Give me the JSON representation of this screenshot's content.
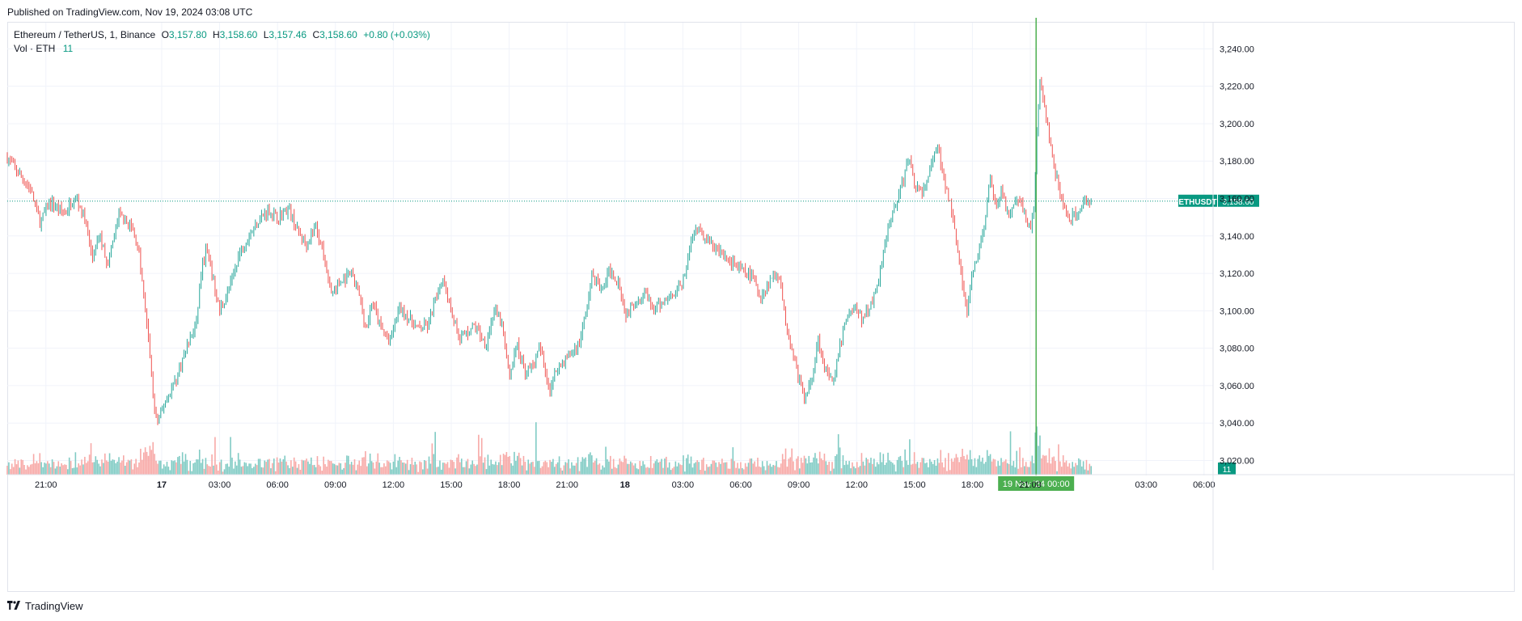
{
  "header": {
    "published": "Published on TradingView.com, Nov 19, 2024 03:08 UTC"
  },
  "legend": {
    "symbol": "Ethereum / TetherUS, 1, Binance",
    "o_label": "O",
    "o_value": "3,157.80",
    "h_label": "H",
    "h_value": "3,158.60",
    "l_label": "L",
    "l_value": "3,157.46",
    "c_label": "C",
    "c_value": "3,158.60",
    "change": "+0.80 (+0.03%)",
    "vol_label": "Vol · ETH",
    "vol_value": "11"
  },
  "footer": {
    "brand": "TradingView",
    "logo_icon": "tradingview-logo-icon"
  },
  "colors": {
    "up": "#26a69a",
    "down": "#ef5350",
    "vol_up": "#80cbc4",
    "vol_down": "#f7a9a7",
    "price_label": "#089981",
    "crosshair": "#4caf50",
    "grid": "#f0f3fa"
  },
  "chart_data": {
    "type": "candlestick",
    "interval": "1 minute",
    "symbol": "ETHUSDT",
    "exchange": "Binance",
    "y_axis_ticks": [
      "3,020.00",
      "3,040.00",
      "3,060.00",
      "3,080.00",
      "3,100.00",
      "3,120.00",
      "3,140.00",
      "3,160.00",
      "3,180.00",
      "3,200.00",
      "3,220.00",
      "3,240.00"
    ],
    "ylim": [
      3012,
      3254
    ],
    "x_axis_ticks": [
      "21:00",
      "17",
      "03:00",
      "06:00",
      "09:00",
      "12:00",
      "15:00",
      "18:00",
      "21:00",
      "18",
      "03:00",
      "06:00",
      "09:00",
      "12:00",
      "15:00",
      "18:00",
      "21:00",
      "03:00",
      "06:00"
    ],
    "bold_ticks": [
      "17",
      "18"
    ],
    "time_range_hours": [
      0,
      62.3
    ],
    "x_tick_hours": [
      2,
      8,
      11,
      14,
      17,
      20,
      23,
      26,
      29,
      32,
      35,
      38,
      41,
      44,
      47,
      50,
      53,
      59,
      62
    ],
    "last_hour": 56.15,
    "crosshair_hour": 53.3,
    "crosshair_label": "19 Nov '24   00:00",
    "last_price": 3158.6,
    "last_price_label": "ETHUSDT",
    "last_price_value": "3,158.60",
    "volume_label": "11",
    "price_path": [
      [
        0.0,
        3182
      ],
      [
        0.4,
        3176
      ],
      [
        1.2,
        3165
      ],
      [
        1.7,
        3147
      ],
      [
        2.2,
        3158
      ],
      [
        3.0,
        3152
      ],
      [
        3.5,
        3162
      ],
      [
        4.0,
        3150
      ],
      [
        4.4,
        3128
      ],
      [
        4.8,
        3140
      ],
      [
        5.2,
        3125
      ],
      [
        5.8,
        3152
      ],
      [
        6.5,
        3143
      ],
      [
        6.8,
        3132
      ],
      [
        7.1,
        3105
      ],
      [
        7.4,
        3075
      ],
      [
        7.6,
        3048
      ],
      [
        7.8,
        3040
      ],
      [
        8.2,
        3052
      ],
      [
        8.8,
        3065
      ],
      [
        9.2,
        3078
      ],
      [
        9.8,
        3093
      ],
      [
        10.0,
        3118
      ],
      [
        10.3,
        3133
      ],
      [
        10.6,
        3120
      ],
      [
        11.0,
        3100
      ],
      [
        11.5,
        3112
      ],
      [
        12.0,
        3130
      ],
      [
        12.5,
        3140
      ],
      [
        13.0,
        3148
      ],
      [
        13.5,
        3154
      ],
      [
        14.0,
        3150
      ],
      [
        14.6,
        3155
      ],
      [
        15.0,
        3143
      ],
      [
        15.5,
        3136
      ],
      [
        16.0,
        3146
      ],
      [
        16.4,
        3128
      ],
      [
        16.8,
        3110
      ],
      [
        17.3,
        3115
      ],
      [
        17.8,
        3120
      ],
      [
        18.2,
        3110
      ],
      [
        18.6,
        3090
      ],
      [
        18.9,
        3105
      ],
      [
        19.3,
        3092
      ],
      [
        19.8,
        3083
      ],
      [
        20.3,
        3102
      ],
      [
        20.8,
        3096
      ],
      [
        21.3,
        3090
      ],
      [
        21.8,
        3092
      ],
      [
        22.3,
        3110
      ],
      [
        22.6,
        3118
      ],
      [
        23.0,
        3100
      ],
      [
        23.4,
        3086
      ],
      [
        23.8,
        3088
      ],
      [
        24.2,
        3092
      ],
      [
        24.8,
        3082
      ],
      [
        25.2,
        3100
      ],
      [
        25.6,
        3094
      ],
      [
        26.0,
        3065
      ],
      [
        26.4,
        3082
      ],
      [
        26.8,
        3068
      ],
      [
        27.2,
        3070
      ],
      [
        27.6,
        3080
      ],
      [
        28.1,
        3058
      ],
      [
        28.5,
        3070
      ],
      [
        29.0,
        3075
      ],
      [
        29.6,
        3082
      ],
      [
        30.0,
        3100
      ],
      [
        30.3,
        3120
      ],
      [
        30.8,
        3110
      ],
      [
        31.2,
        3122
      ],
      [
        31.7,
        3115
      ],
      [
        32.0,
        3098
      ],
      [
        32.5,
        3105
      ],
      [
        33.0,
        3110
      ],
      [
        33.5,
        3100
      ],
      [
        34.0,
        3105
      ],
      [
        34.5,
        3110
      ],
      [
        35.0,
        3115
      ],
      [
        35.6,
        3145
      ],
      [
        36.2,
        3138
      ],
      [
        36.8,
        3132
      ],
      [
        37.4,
        3127
      ],
      [
        38.0,
        3122
      ],
      [
        38.6,
        3118
      ],
      [
        39.0,
        3107
      ],
      [
        39.6,
        3118
      ],
      [
        40.0,
        3120
      ],
      [
        40.3,
        3095
      ],
      [
        40.6,
        3082
      ],
      [
        40.9,
        3068
      ],
      [
        41.3,
        3052
      ],
      [
        41.7,
        3065
      ],
      [
        42.0,
        3085
      ],
      [
        42.4,
        3068
      ],
      [
        42.8,
        3060
      ],
      [
        43.1,
        3080
      ],
      [
        43.5,
        3098
      ],
      [
        43.9,
        3102
      ],
      [
        44.3,
        3095
      ],
      [
        44.6,
        3100
      ],
      [
        44.9,
        3108
      ],
      [
        45.2,
        3120
      ],
      [
        45.5,
        3140
      ],
      [
        45.8,
        3150
      ],
      [
        46.1,
        3160
      ],
      [
        46.4,
        3168
      ],
      [
        46.7,
        3183
      ],
      [
        47.0,
        3168
      ],
      [
        47.4,
        3162
      ],
      [
        47.8,
        3175
      ],
      [
        48.2,
        3188
      ],
      [
        48.5,
        3170
      ],
      [
        48.8,
        3160
      ],
      [
        49.1,
        3145
      ],
      [
        49.4,
        3120
      ],
      [
        49.7,
        3098
      ],
      [
        50.0,
        3120
      ],
      [
        50.3,
        3130
      ],
      [
        50.6,
        3145
      ],
      [
        50.9,
        3170
      ],
      [
        51.2,
        3155
      ],
      [
        51.5,
        3165
      ],
      [
        51.9,
        3148
      ],
      [
        52.3,
        3160
      ],
      [
        52.7,
        3152
      ],
      [
        53.0,
        3145
      ],
      [
        53.2,
        3155
      ],
      [
        53.3,
        3190
      ],
      [
        53.5,
        3222
      ],
      [
        53.8,
        3205
      ],
      [
        54.2,
        3178
      ],
      [
        54.6,
        3160
      ],
      [
        55.0,
        3148
      ],
      [
        55.4,
        3152
      ],
      [
        55.8,
        3158
      ],
      [
        56.15,
        3158.6
      ]
    ]
  }
}
